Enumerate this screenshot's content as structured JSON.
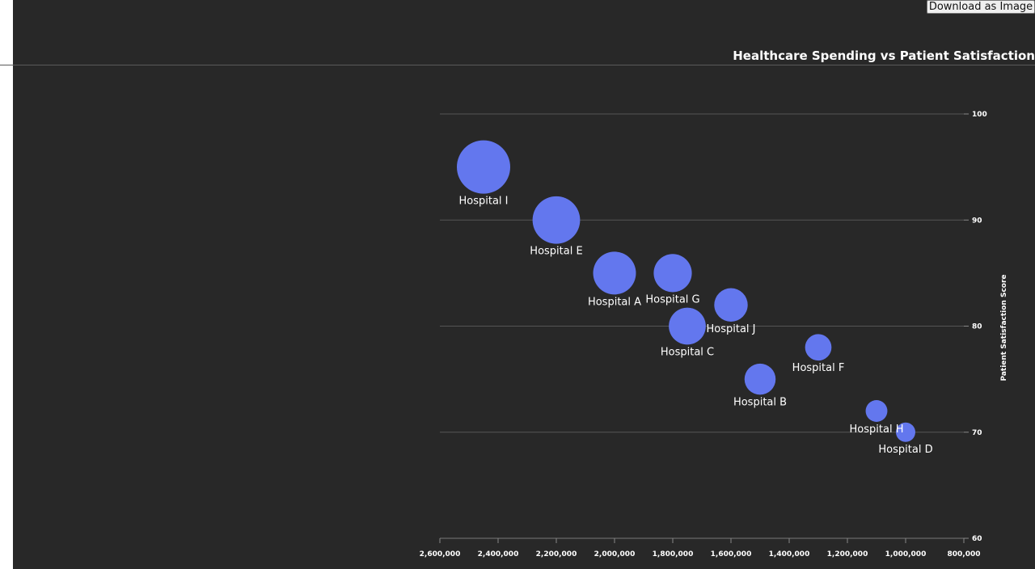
{
  "toolbar": {
    "download_label": "Download as Image"
  },
  "chart_data": {
    "type": "scatter",
    "title": "Healthcare Spending vs Patient Satisfaction",
    "xlabel": "",
    "ylabel": "Patient Satisfaction Score",
    "xlim": [
      2600000,
      800000
    ],
    "ylim": [
      60,
      100
    ],
    "x_reversed": true,
    "y_axis_position": "right",
    "grid": true,
    "x_ticks": [
      2600000,
      2400000,
      2200000,
      2000000,
      1800000,
      1600000,
      1400000,
      1200000,
      1000000,
      800000
    ],
    "y_ticks": [
      60,
      70,
      80,
      90,
      100
    ],
    "color": "#6377ee",
    "points": [
      {
        "label": "Hospital I",
        "x": 2450000,
        "y": 95,
        "size": 2450000
      },
      {
        "label": "Hospital E",
        "x": 2200000,
        "y": 90,
        "size": 2200000
      },
      {
        "label": "Hospital A",
        "x": 2000000,
        "y": 85,
        "size": 2000000
      },
      {
        "label": "Hospital G",
        "x": 1800000,
        "y": 85,
        "size": 1800000
      },
      {
        "label": "Hospital C",
        "x": 1750000,
        "y": 80,
        "size": 1750000
      },
      {
        "label": "Hospital J",
        "x": 1600000,
        "y": 82,
        "size": 1600000
      },
      {
        "label": "Hospital F",
        "x": 1300000,
        "y": 78,
        "size": 1300000
      },
      {
        "label": "Hospital B",
        "x": 1500000,
        "y": 75,
        "size": 1500000
      },
      {
        "label": "Hospital H",
        "x": 1100000,
        "y": 72,
        "size": 1100000
      },
      {
        "label": "Hospital D",
        "x": 1000000,
        "y": 70,
        "size": 1000000
      }
    ]
  }
}
